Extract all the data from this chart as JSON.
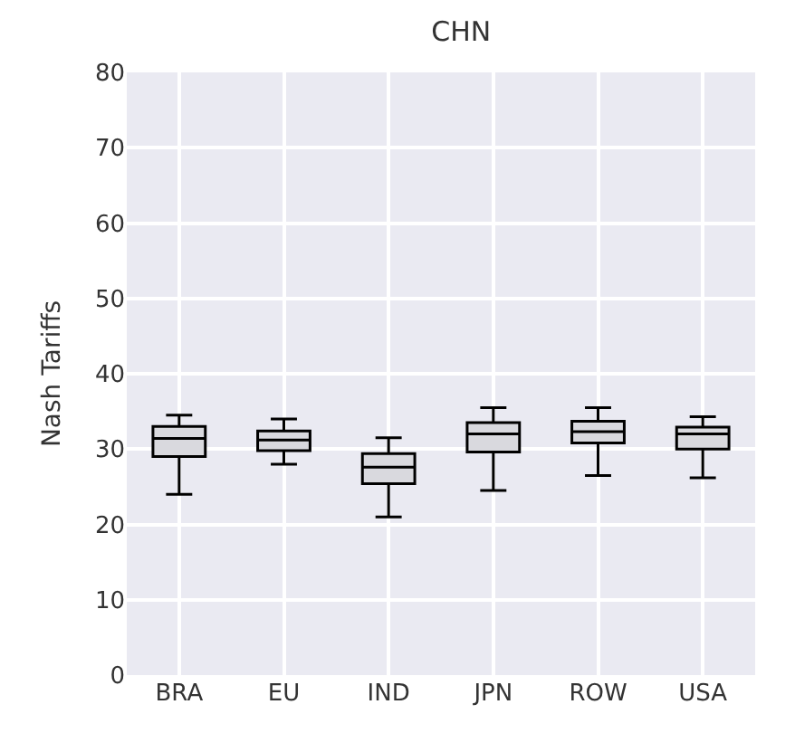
{
  "chart_data": {
    "type": "box",
    "title": "CHN",
    "ylabel": "Nash Tariffs",
    "categories": [
      "BRA",
      "EU",
      "IND",
      "JPN",
      "ROW",
      "USA"
    ],
    "boxes": [
      {
        "low": 24,
        "q1": 29,
        "median": 31.4,
        "q3": 33,
        "high": 34.5
      },
      {
        "low": 28,
        "q1": 29.8,
        "median": 31.2,
        "q3": 32.4,
        "high": 34
      },
      {
        "low": 21,
        "q1": 25.4,
        "median": 27.6,
        "q3": 29.4,
        "high": 31.5
      },
      {
        "low": 24.5,
        "q1": 29.6,
        "median": 32,
        "q3": 33.5,
        "high": 35.5
      },
      {
        "low": 26.5,
        "q1": 30.8,
        "median": 32.3,
        "q3": 33.7,
        "high": 35.5
      },
      {
        "low": 26.2,
        "q1": 30,
        "median": 32,
        "q3": 32.9,
        "high": 34.3
      }
    ],
    "color": "#000000",
    "ylim": [
      0,
      80
    ],
    "yticks": [
      0,
      10,
      20,
      30,
      40,
      50,
      60,
      70,
      80
    ],
    "grid": true,
    "legend": false
  }
}
